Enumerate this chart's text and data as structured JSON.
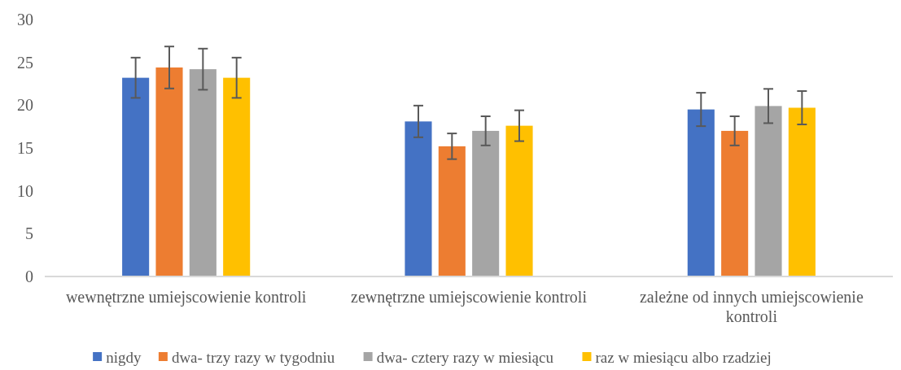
{
  "chart_data": {
    "type": "bar",
    "categories": [
      "wewnętrzne umiejscowienie kontroli",
      "zewnętrzne umiejscowienie kontroli",
      "zależne od innych umiejscowienie kontroli"
    ],
    "series": [
      {
        "name": "nigdy",
        "color": "#4472c4",
        "values": [
          23.2,
          18.1,
          19.5
        ],
        "errors": [
          2.35,
          1.85,
          1.95
        ]
      },
      {
        "name": "dwa- trzy razy w tygodniu",
        "color": "#ed7d31",
        "values": [
          24.4,
          15.2,
          17.0
        ],
        "errors": [
          2.45,
          1.5,
          1.7
        ]
      },
      {
        "name": "dwa- cztery razy w miesiącu",
        "color": "#a5a5a5",
        "values": [
          24.2,
          17.0,
          19.9
        ],
        "errors": [
          2.4,
          1.7,
          2.0
        ]
      },
      {
        "name": "raz w miesiącu albo rzadziej",
        "color": "#ffc000",
        "values": [
          23.2,
          17.6,
          19.7
        ],
        "errors": [
          2.35,
          1.8,
          1.95
        ]
      }
    ],
    "ylim": [
      0,
      30
    ],
    "yticks": [
      0,
      5,
      10,
      15,
      20,
      25,
      30
    ],
    "legend": "bottom"
  }
}
